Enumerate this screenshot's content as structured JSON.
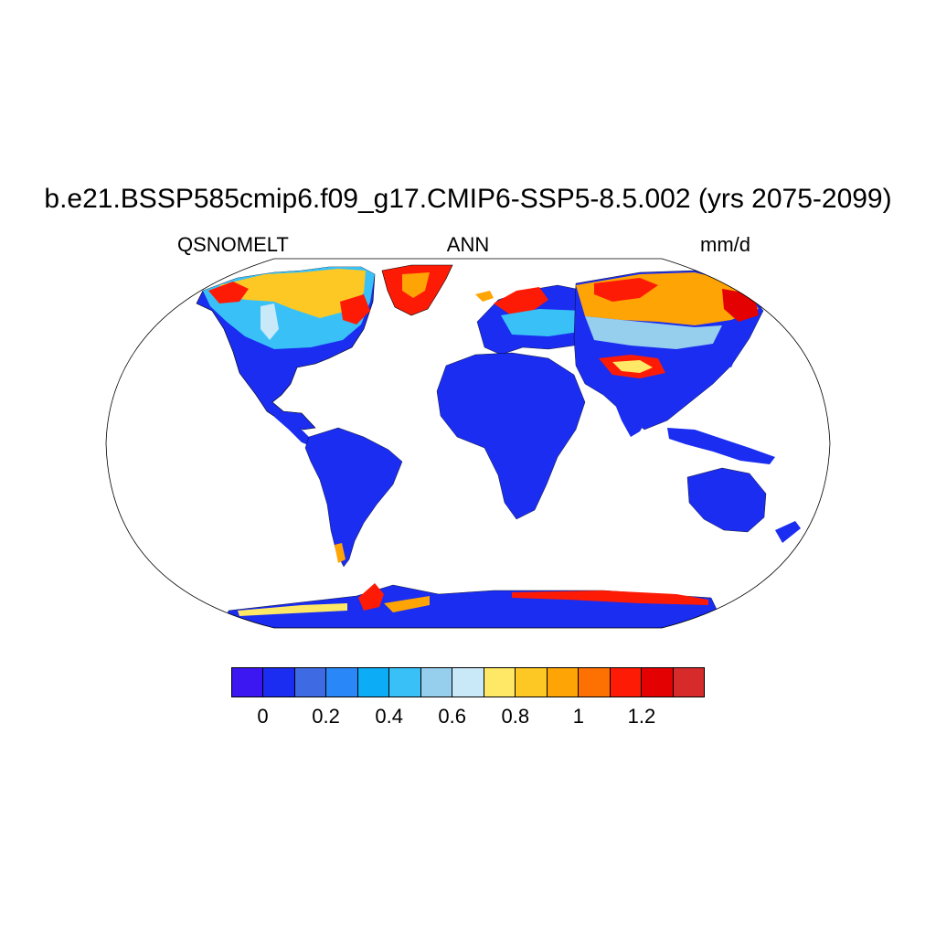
{
  "title": "b.e21.BSSP585cmip6.f09_g17.CMIP6-SSP5-8.5.002 (yrs 2075-2099)",
  "left_string": "QSNOMELT",
  "center_string": "ANN",
  "right_string": "mm/d",
  "colorbar": {
    "colors": [
      "#3d17f2",
      "#1a2df0",
      "#3e6be3",
      "#2a87f7",
      "#0cacf7",
      "#39c1f7",
      "#96ceee",
      "#c9e8f8",
      "#fee866",
      "#fdc823",
      "#fea405",
      "#fd7002",
      "#fe1b05",
      "#e40101",
      "#d72a2b"
    ],
    "labels": [
      "0",
      "0.2",
      "0.4",
      "0.6",
      "0.8",
      "1",
      "1.2"
    ],
    "label_after_box": [
      1,
      3,
      5,
      7,
      9,
      11,
      13
    ]
  },
  "map": {
    "projection": "robinson",
    "ocean_color": "#ffffff",
    "base_land_color": "#1a2df0"
  }
}
